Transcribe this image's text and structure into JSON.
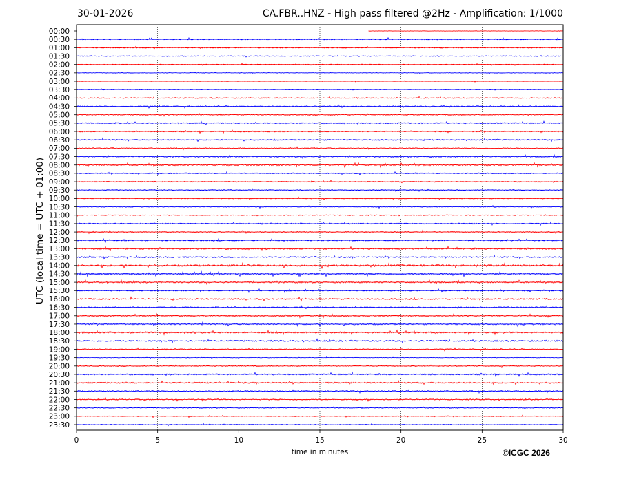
{
  "header": {
    "date": "30-01-2026",
    "title": "CA.FBR..HNZ - High pass filtered @2Hz - Amplification: 1/1000"
  },
  "footer": {
    "copyright": "©ICGC 2026"
  },
  "chart_data": {
    "type": "line",
    "title": "CA.FBR..HNZ - High pass filtered @2Hz - Amplification: 1/1000",
    "xlabel": "time in minutes",
    "ylabel": "UTC (local time = UTC + 01:00)",
    "xlim": [
      0,
      30
    ],
    "xticks": [
      "0",
      "5",
      "10",
      "15",
      "20",
      "25",
      "30"
    ],
    "grid_x": [
      5,
      10,
      15,
      20,
      25
    ],
    "grid": "vertical dotted",
    "colors": {
      "odd_hour": "#ff0000",
      "even_hour": "#0000ff",
      "alternating": [
        "#ff0000",
        "#0000ff"
      ]
    },
    "traces": [
      "00:00",
      "00:30",
      "01:00",
      "01:30",
      "02:00",
      "02:30",
      "03:00",
      "03:30",
      "04:00",
      "04:30",
      "05:00",
      "05:30",
      "06:00",
      "06:30",
      "07:00",
      "07:30",
      "08:00",
      "08:30",
      "09:00",
      "09:30",
      "10:00",
      "10:30",
      "11:00",
      "11:30",
      "12:00",
      "12:30",
      "13:00",
      "13:30",
      "14:00",
      "14:30",
      "15:00",
      "15:30",
      "16:00",
      "16:30",
      "17:00",
      "17:30",
      "18:00",
      "18:30",
      "19:00",
      "19:30",
      "20:00",
      "20:30",
      "21:00",
      "21:30",
      "22:00",
      "22:30",
      "23:00",
      "23:30"
    ],
    "trace_colors": [
      "#ff0000",
      "#0000ff",
      "#ff0000",
      "#0000ff",
      "#ff0000",
      "#0000ff",
      "#ff0000",
      "#0000ff",
      "#ff0000",
      "#0000ff",
      "#ff0000",
      "#0000ff",
      "#ff0000",
      "#0000ff",
      "#ff0000",
      "#0000ff",
      "#ff0000",
      "#0000ff",
      "#ff0000",
      "#0000ff",
      "#ff0000",
      "#0000ff",
      "#ff0000",
      "#0000ff",
      "#ff0000",
      "#0000ff",
      "#ff0000",
      "#0000ff",
      "#ff0000",
      "#0000ff",
      "#ff0000",
      "#0000ff",
      "#ff0000",
      "#0000ff",
      "#ff0000",
      "#0000ff",
      "#ff0000",
      "#0000ff",
      "#ff0000",
      "#0000ff",
      "#ff0000",
      "#0000ff",
      "#ff0000",
      "#0000ff",
      "#ff0000",
      "#0000ff",
      "#ff0000",
      "#0000ff"
    ],
    "activity": [
      0.2,
      0.5,
      0.45,
      0.4,
      0.35,
      0.3,
      0.25,
      0.3,
      0.45,
      0.5,
      0.5,
      0.55,
      0.55,
      0.55,
      0.45,
      0.6,
      0.7,
      0.5,
      0.5,
      0.45,
      0.45,
      0.4,
      0.4,
      0.55,
      0.5,
      0.6,
      0.7,
      0.6,
      0.85,
      0.9,
      0.7,
      0.55,
      0.6,
      0.6,
      0.65,
      0.7,
      0.7,
      0.65,
      0.5,
      0.25,
      0.45,
      0.65,
      0.65,
      0.55,
      0.55,
      0.4,
      0.35,
      0.4
    ]
  }
}
